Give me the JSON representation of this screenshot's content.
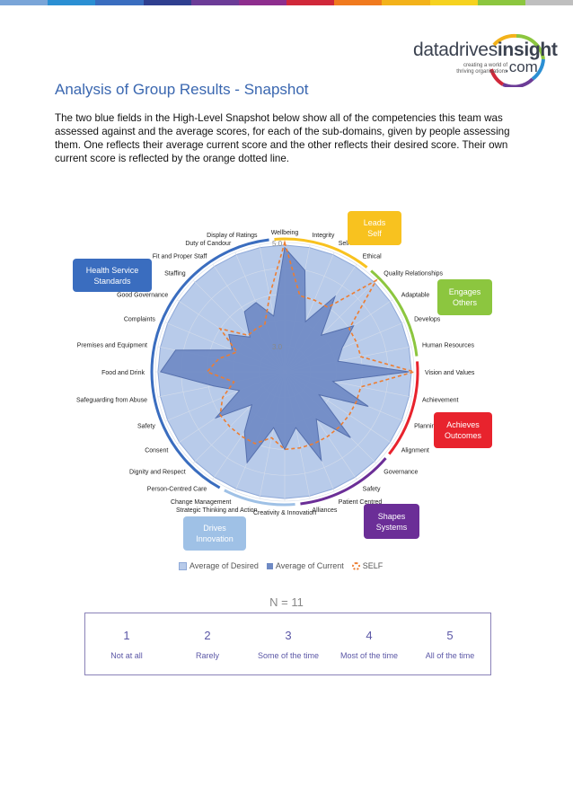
{
  "top_bar_colors": [
    "#7aa5d8",
    "#2b8fd3",
    "#3a6dbf",
    "#2f3f8f",
    "#6c3c97",
    "#8e2e8e",
    "#d0283a",
    "#f07a1e",
    "#f3b21a",
    "#f6d21f",
    "#8cc63f",
    "#bfbfbf"
  ],
  "logo": {
    "word_light": "datadrives",
    "word_bold": "insight",
    "tagline_line1": "creating a world of",
    "tagline_line2": "thriving organisations",
    "suffix": ".com"
  },
  "title": "Analysis of Group Results - Snapshot",
  "intro": "The two blue fields in the High-Level Snapshot below show all of the competencies this team was assessed against and the average scores, for each of the sub-domains, given by people assessing them. One reflects their average current score and the other reflects their desired score. Their own current score is reflected by the orange dotted line.",
  "domains": [
    {
      "label_line1": "Leads",
      "label_line2": "Self",
      "color": "#f8c21f"
    },
    {
      "label_line1": "Engages",
      "label_line2": "Others",
      "color": "#8cc63f"
    },
    {
      "label_line1": "Achieves",
      "label_line2": "Outcomes",
      "color": "#e8232d"
    },
    {
      "label_line1": "Shapes",
      "label_line2": "Systems",
      "color": "#6b2e97"
    },
    {
      "label_line1": "Drives",
      "label_line2": "Innovation",
      "color": "#9fc1e6"
    },
    {
      "label_line1": "Health Service",
      "label_line2": "Standards",
      "color": "#3a6dbf"
    }
  ],
  "chart_data": {
    "type": "radar",
    "axis_ticks": [
      "3.0",
      "5.0"
    ],
    "rmin": 2.5,
    "rmax": 5.0,
    "categories": [
      "Wellbeing",
      "Integrity",
      "Self Awareness",
      "Ethical",
      "Quality Relationships",
      "Adaptable",
      "Develops",
      "Human Resources",
      "Vision and Values",
      "Achievement",
      "Planning",
      "Alignment",
      "Governance",
      "Safety",
      "Patient Centred",
      "Alliances",
      "Creativity & Innovation",
      "Strategic Thinking and Action",
      "Change Management",
      "Person-Centred Care",
      "Dignity and Respect",
      "Consent",
      "Safety",
      "Safeguarding from Abuse",
      "Food and Drink",
      "Premises and Equipment",
      "Complaints",
      "Good Governance",
      "Staffing",
      "Fit and Proper Staff",
      "Duty of Candour",
      "Display of Ratings"
    ],
    "series": [
      {
        "name": "Average of Desired",
        "values": [
          4.95,
          4.95,
          4.95,
          4.95,
          4.95,
          4.95,
          4.95,
          4.95,
          4.95,
          4.95,
          4.95,
          4.95,
          4.95,
          4.95,
          4.95,
          4.95,
          4.95,
          4.95,
          4.95,
          4.95,
          4.95,
          4.95,
          4.95,
          4.95,
          4.95,
          4.95,
          4.95,
          4.95,
          4.95,
          4.95,
          4.95,
          4.95
        ]
      },
      {
        "name": "Average of Current",
        "values": [
          4.9,
          4.5,
          3.55,
          4.25,
          3.5,
          4.1,
          3.7,
          3.55,
          4.9,
          3.45,
          4.25,
          3.3,
          4.3,
          3.6,
          4.35,
          3.6,
          4.0,
          3.6,
          4.4,
          3.9,
          3.4,
          4.1,
          3.45,
          3.9,
          4.9,
          4.65,
          3.6,
          3.8,
          3.45,
          3.9,
          3.95,
          3.6
        ]
      },
      {
        "name": "SELF",
        "values": [
          5.0,
          4.0,
          4.0,
          4.0,
          5.0,
          4.0,
          4.0,
          4.0,
          5.0,
          4.0,
          4.0,
          4.0,
          4.0,
          4.0,
          4.0,
          4.0,
          4.0,
          3.8,
          4.0,
          4.0,
          4.0,
          4.0,
          3.8,
          3.5,
          4.0,
          3.8,
          3.5,
          4.0,
          3.5,
          3.5,
          3.5,
          4.0
        ]
      }
    ],
    "legend_position": "bottom"
  },
  "legend": [
    {
      "label": "Average of Desired",
      "color": "#b8cbea"
    },
    {
      "label": "Average of Current",
      "color": "#6f8ac4"
    },
    {
      "label": "SELF",
      "color": "#ed7d31"
    }
  ],
  "n_label": "N = 11",
  "scale": [
    {
      "num": "1",
      "label": "Not at all"
    },
    {
      "num": "2",
      "label": "Rarely"
    },
    {
      "num": "3",
      "label": "Some of the time"
    },
    {
      "num": "4",
      "label": "Most of the time"
    },
    {
      "num": "5",
      "label": "All of the time"
    }
  ]
}
